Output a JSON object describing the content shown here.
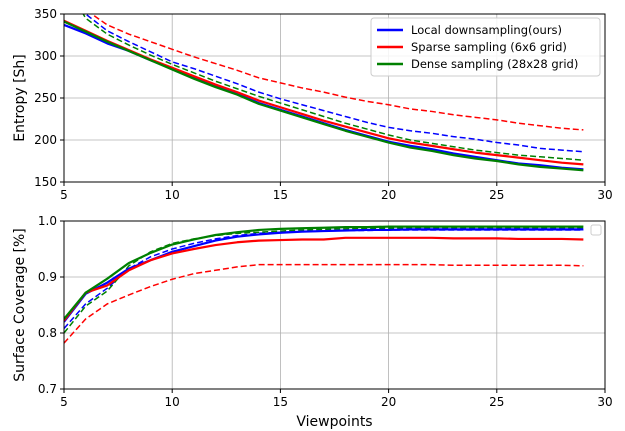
{
  "chart_data": [
    {
      "type": "line",
      "ylabel": "Entropy [Sh]",
      "xlim": [
        5,
        30
      ],
      "ylim": [
        150,
        350
      ],
      "xticks": [
        5,
        10,
        15,
        20,
        25,
        30
      ],
      "yticks": [
        150,
        200,
        250,
        300,
        350
      ],
      "grid": true,
      "legend_position": "top-right",
      "series": [
        {
          "name": "Local downsampling(ours)",
          "color": "#0000ff",
          "style": "solid",
          "x": [
            5,
            6,
            7,
            8,
            9,
            10,
            11,
            12,
            13,
            14,
            15,
            16,
            17,
            18,
            19,
            20,
            21,
            22,
            23,
            24,
            25,
            26,
            27,
            28,
            29
          ],
          "values": [
            337,
            327,
            315,
            306,
            295,
            285,
            274,
            264,
            255,
            244,
            236,
            228,
            220,
            212,
            205,
            198,
            193,
            189,
            184,
            180,
            176,
            172,
            170,
            167,
            165
          ]
        },
        {
          "name": "Sparse sampling (6x6 grid)",
          "color": "#ff0000",
          "style": "solid",
          "x": [
            5,
            6,
            7,
            8,
            9,
            10,
            11,
            12,
            13,
            14,
            15,
            16,
            17,
            18,
            19,
            20,
            21,
            22,
            23,
            24,
            25,
            26,
            27,
            28,
            29
          ],
          "values": [
            342,
            330,
            318,
            307,
            296,
            286,
            276,
            266,
            257,
            247,
            239,
            231,
            223,
            216,
            209,
            202,
            197,
            193,
            189,
            185,
            182,
            179,
            176,
            173,
            171
          ]
        },
        {
          "name": "Dense sampling (28x28 grid)",
          "color": "#008000",
          "style": "solid",
          "x": [
            5,
            6,
            7,
            8,
            9,
            10,
            11,
            12,
            13,
            14,
            15,
            16,
            17,
            18,
            19,
            20,
            21,
            22,
            23,
            24,
            25,
            26,
            27,
            28,
            29
          ],
          "values": [
            341,
            329,
            317,
            306,
            295,
            284,
            273,
            263,
            254,
            243,
            235,
            227,
            219,
            211,
            204,
            197,
            191,
            187,
            182,
            178,
            175,
            171,
            168,
            166,
            164
          ]
        },
        {
          "color": "#0000ff",
          "style": "dashed",
          "x": [
            5,
            6,
            7,
            8,
            9,
            10,
            11,
            12,
            13,
            14,
            15,
            16,
            17,
            18,
            19,
            20,
            21,
            22,
            23,
            24,
            25,
            26,
            27,
            28,
            29
          ],
          "values": [
            395,
            350,
            330,
            317,
            305,
            293,
            285,
            276,
            267,
            257,
            249,
            242,
            235,
            228,
            221,
            215,
            211,
            208,
            204,
            201,
            197,
            194,
            190,
            188,
            186
          ]
        },
        {
          "color": "#ff0000",
          "style": "dashed",
          "x": [
            5,
            6,
            7,
            8,
            9,
            10,
            11,
            12,
            13,
            14,
            15,
            16,
            17,
            18,
            19,
            20,
            21,
            22,
            23,
            24,
            25,
            26,
            27,
            28,
            29
          ],
          "values": [
            400,
            355,
            337,
            326,
            317,
            308,
            299,
            291,
            283,
            274,
            268,
            262,
            257,
            251,
            246,
            242,
            237,
            234,
            230,
            227,
            224,
            220,
            217,
            214,
            212
          ]
        },
        {
          "color": "#008000",
          "style": "dashed",
          "x": [
            5,
            6,
            7,
            8,
            9,
            10,
            11,
            12,
            13,
            14,
            15,
            16,
            17,
            18,
            19,
            20,
            21,
            22,
            23,
            24,
            25,
            26,
            27,
            28,
            29
          ],
          "values": [
            390,
            345,
            326,
            313,
            301,
            290,
            280,
            270,
            261,
            252,
            244,
            236,
            228,
            220,
            213,
            206,
            200,
            196,
            192,
            188,
            185,
            182,
            180,
            178,
            176
          ]
        }
      ]
    },
    {
      "type": "line",
      "xlabel": "Viewpoints",
      "ylabel": "Surface Coverage [%]",
      "xlim": [
        5,
        30
      ],
      "ylim": [
        0.7,
        1.0
      ],
      "xticks": [
        5,
        10,
        15,
        20,
        25,
        30
      ],
      "yticks": [
        0.7,
        0.8,
        0.9,
        1.0
      ],
      "grid": true,
      "legend_position": "top-right",
      "series": [
        {
          "color": "#0000ff",
          "style": "solid",
          "x": [
            5,
            6,
            7,
            8,
            9,
            10,
            11,
            12,
            13,
            14,
            15,
            16,
            17,
            18,
            19,
            20,
            21,
            22,
            23,
            24,
            25,
            26,
            27,
            28,
            29
          ],
          "values": [
            0.82,
            0.87,
            0.89,
            0.915,
            0.93,
            0.945,
            0.955,
            0.965,
            0.972,
            0.976,
            0.979,
            0.981,
            0.982,
            0.983,
            0.984,
            0.984,
            0.985,
            0.985,
            0.985,
            0.985,
            0.985,
            0.985,
            0.985,
            0.985,
            0.985
          ]
        },
        {
          "color": "#ff0000",
          "style": "solid",
          "x": [
            5,
            6,
            7,
            8,
            9,
            10,
            11,
            12,
            13,
            14,
            15,
            16,
            17,
            18,
            19,
            20,
            21,
            22,
            23,
            24,
            25,
            26,
            27,
            28,
            29
          ],
          "values": [
            0.822,
            0.872,
            0.885,
            0.912,
            0.93,
            0.942,
            0.95,
            0.957,
            0.962,
            0.965,
            0.966,
            0.967,
            0.967,
            0.97,
            0.97,
            0.97,
            0.97,
            0.97,
            0.969,
            0.969,
            0.969,
            0.968,
            0.968,
            0.968,
            0.967
          ]
        },
        {
          "color": "#008000",
          "style": "solid",
          "x": [
            5,
            6,
            7,
            8,
            9,
            10,
            11,
            12,
            13,
            14,
            15,
            16,
            17,
            18,
            19,
            20,
            21,
            22,
            23,
            24,
            25,
            26,
            27,
            28,
            29
          ],
          "values": [
            0.825,
            0.872,
            0.897,
            0.925,
            0.943,
            0.958,
            0.967,
            0.975,
            0.98,
            0.984,
            0.986,
            0.987,
            0.988,
            0.989,
            0.989,
            0.99,
            0.99,
            0.99,
            0.99,
            0.99,
            0.99,
            0.99,
            0.99,
            0.99,
            0.99
          ]
        },
        {
          "color": "#0000ff",
          "style": "dashed",
          "x": [
            5,
            6,
            7,
            8,
            9,
            10,
            11,
            12,
            13,
            14,
            15,
            16,
            17,
            18,
            19,
            20,
            21,
            22,
            23,
            24,
            25,
            26,
            27,
            28,
            29
          ],
          "values": [
            0.808,
            0.852,
            0.88,
            0.915,
            0.936,
            0.95,
            0.96,
            0.968,
            0.974,
            0.978,
            0.98,
            0.981,
            0.982,
            0.983,
            0.983,
            0.984,
            0.984,
            0.984,
            0.984,
            0.984,
            0.984,
            0.984,
            0.984,
            0.984,
            0.984
          ]
        },
        {
          "color": "#ff0000",
          "style": "dashed",
          "x": [
            5,
            6,
            7,
            8,
            9,
            10,
            11,
            12,
            13,
            14,
            15,
            16,
            17,
            18,
            19,
            20,
            21,
            22,
            23,
            24,
            25,
            26,
            27,
            28,
            29
          ],
          "values": [
            0.782,
            0.825,
            0.852,
            0.868,
            0.883,
            0.896,
            0.906,
            0.912,
            0.918,
            0.922,
            0.922,
            0.922,
            0.922,
            0.922,
            0.922,
            0.922,
            0.922,
            0.922,
            0.921,
            0.921,
            0.921,
            0.921,
            0.921,
            0.921,
            0.92
          ]
        },
        {
          "color": "#008000",
          "style": "dashed",
          "x": [
            5,
            6,
            7,
            8,
            9,
            10,
            11,
            12,
            13,
            14,
            15,
            16,
            17,
            18,
            19,
            20,
            21,
            22,
            23,
            24,
            25,
            26,
            27,
            28,
            29
          ],
          "values": [
            0.8,
            0.848,
            0.875,
            0.92,
            0.945,
            0.96,
            0.968,
            0.974,
            0.978,
            0.98,
            0.982,
            0.984,
            0.985,
            0.986,
            0.987,
            0.987,
            0.987,
            0.987,
            0.987,
            0.987,
            0.987,
            0.987,
            0.987,
            0.987,
            0.987
          ]
        }
      ]
    }
  ]
}
